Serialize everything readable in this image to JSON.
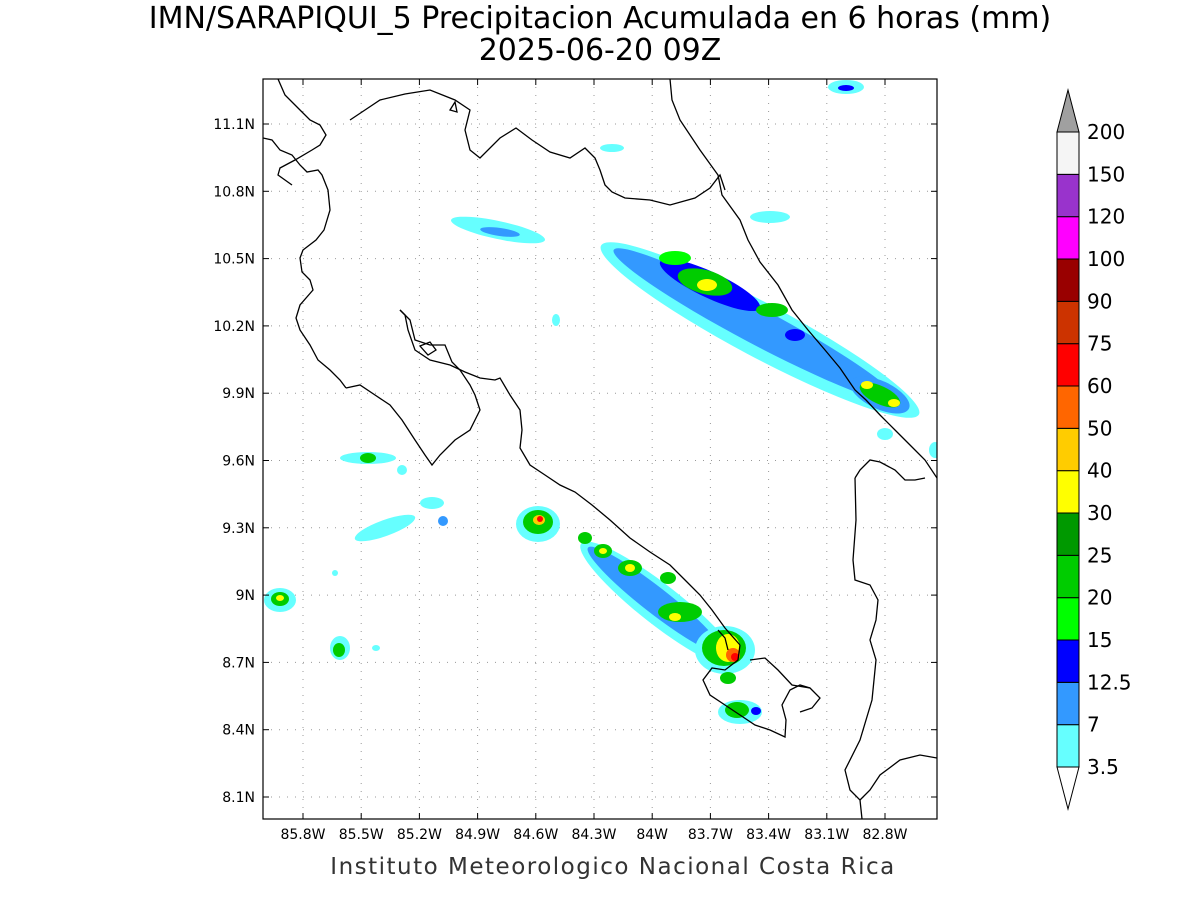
{
  "title": {
    "line1": "IMN/SARAPIQUI_5 Precipitacion Acumulada en 6 horas (mm)",
    "line2": "2025-06-20 09Z"
  },
  "footer": "Instituto Meteorologico Nacional Costa Rica",
  "axes": {
    "lat_labels": [
      "11.1N",
      "10.8N",
      "10.5N",
      "10.2N",
      "9.9N",
      "9.6N",
      "9.3N",
      "9N",
      "8.7N",
      "8.4N",
      "8.1N"
    ],
    "lon_labels": [
      "85.8W",
      "85.5W",
      "85.2W",
      "84.9W",
      "84.6W",
      "84.3W",
      "84W",
      "83.7W",
      "83.4W",
      "83.1W",
      "82.8W"
    ]
  },
  "colorbar": {
    "levels": [
      "3.5",
      "7",
      "12.5",
      "15",
      "20",
      "25",
      "30",
      "40",
      "50",
      "60",
      "75",
      "90",
      "100",
      "120",
      "150",
      "200"
    ],
    "colors": [
      "#66ffff",
      "#3399ff",
      "#0000ff",
      "#00ff00",
      "#00cc00",
      "#009900",
      "#ffff00",
      "#ffcc00",
      "#ff6600",
      "#ff0000",
      "#cc3300",
      "#990000",
      "#ff00ff",
      "#9933cc",
      "#f5f5f5"
    ],
    "over_color": "#a0a0a0"
  }
}
